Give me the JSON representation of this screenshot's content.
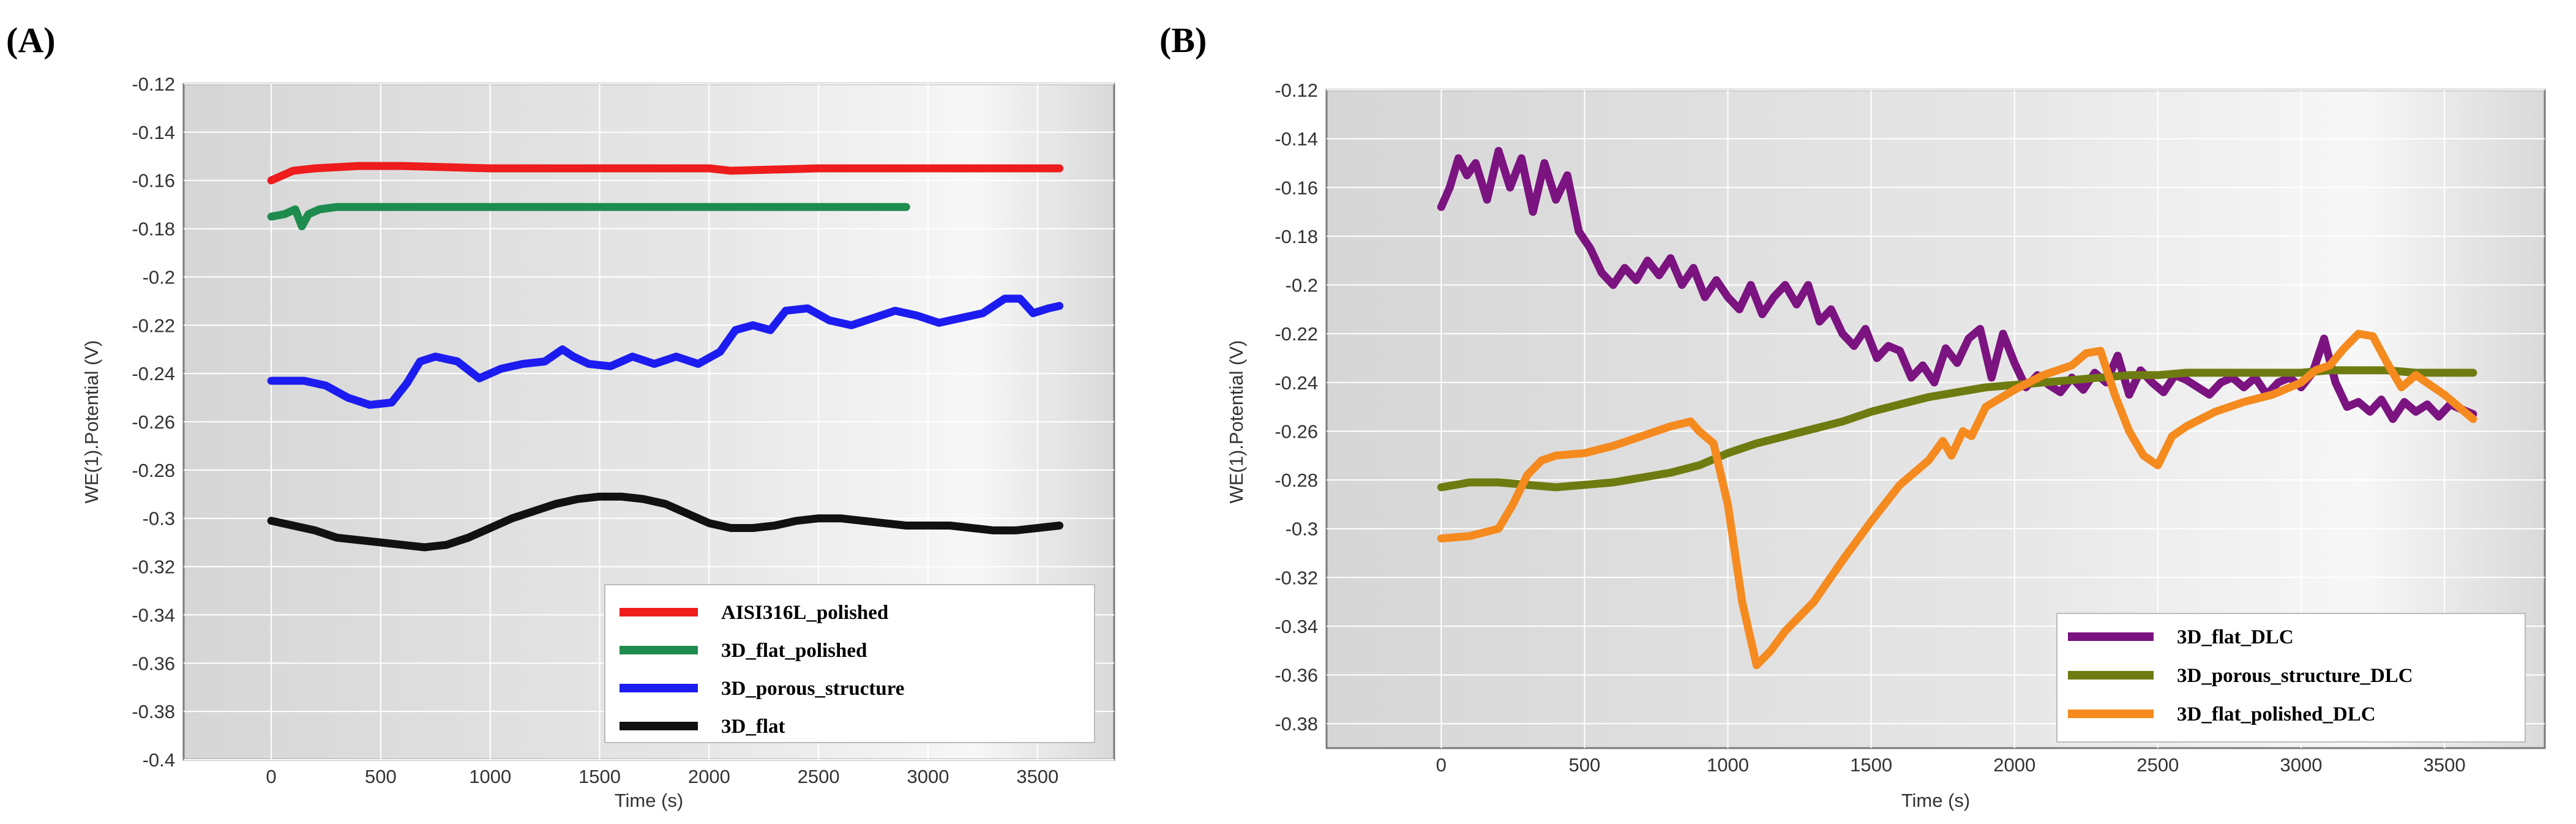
{
  "chart_data": [
    {
      "type": "line",
      "panel_label": "(A)",
      "title": "",
      "xlabel": "Time (s)",
      "ylabel": "WE(1).Potential (V)",
      "xlim": [
        -400,
        3850
      ],
      "ylim": [
        -0.4,
        -0.12
      ],
      "xticks": [
        0,
        500,
        1000,
        1500,
        2000,
        2500,
        3000,
        3500
      ],
      "yticks": [
        -0.4,
        -0.38,
        -0.36,
        -0.34,
        -0.32,
        -0.3,
        -0.28,
        -0.26,
        -0.24,
        -0.22,
        -0.2,
        -0.18,
        -0.16,
        -0.14,
        -0.12
      ],
      "xtick_labels": [
        "0",
        "500",
        "1000",
        "1500",
        "2000",
        "2500",
        "3000",
        "3500"
      ],
      "ytick_labels": [
        "-0.4",
        "-0.38",
        "-0.36",
        "-0.34",
        "-0.32",
        "-0.3",
        "-0.28",
        "-0.26",
        "-0.24",
        "-0.22",
        "-0.2",
        "-0.18",
        "-0.16",
        "-0.14",
        "-0.12"
      ],
      "grid": true,
      "legend_position": "bottom-right",
      "series": [
        {
          "name": "AISI316L_polished",
          "color": "#ee1c1c",
          "x": [
            0,
            50,
            100,
            200,
            400,
            600,
            1000,
            1500,
            2000,
            2100,
            2500,
            3000,
            3600
          ],
          "y": [
            -0.16,
            -0.158,
            -0.156,
            -0.155,
            -0.154,
            -0.154,
            -0.155,
            -0.155,
            -0.155,
            -0.156,
            -0.155,
            -0.155,
            -0.155
          ]
        },
        {
          "name": "3D_flat_polished",
          "color": "#1e8c4e",
          "x": [
            0,
            60,
            110,
            140,
            170,
            220,
            300,
            500,
            1000,
            1500,
            2000,
            2500,
            2900
          ],
          "y": [
            -0.175,
            -0.174,
            -0.172,
            -0.179,
            -0.174,
            -0.172,
            -0.171,
            -0.171,
            -0.171,
            -0.171,
            -0.171,
            -0.171,
            -0.171
          ]
        },
        {
          "name": "3D_porous_structure",
          "color": "#1c1cf0",
          "x": [
            0,
            150,
            250,
            350,
            450,
            550,
            620,
            680,
            750,
            850,
            950,
            1050,
            1150,
            1250,
            1330,
            1380,
            1450,
            1550,
            1650,
            1750,
            1850,
            1950,
            2050,
            2120,
            2200,
            2280,
            2350,
            2450,
            2550,
            2650,
            2750,
            2850,
            2950,
            3050,
            3150,
            3250,
            3350,
            3420,
            3480,
            3550,
            3600
          ],
          "y": [
            -0.243,
            -0.243,
            -0.245,
            -0.25,
            -0.253,
            -0.252,
            -0.244,
            -0.235,
            -0.233,
            -0.235,
            -0.242,
            -0.238,
            -0.236,
            -0.235,
            -0.23,
            -0.233,
            -0.236,
            -0.237,
            -0.233,
            -0.236,
            -0.233,
            -0.236,
            -0.231,
            -0.222,
            -0.22,
            -0.222,
            -0.214,
            -0.213,
            -0.218,
            -0.22,
            -0.217,
            -0.214,
            -0.216,
            -0.219,
            -0.217,
            -0.215,
            -0.209,
            -0.209,
            -0.215,
            -0.213,
            -0.212
          ]
        },
        {
          "name": "3D_flat",
          "color": "#111111",
          "x": [
            0,
            100,
            200,
            300,
            400,
            500,
            600,
            700,
            800,
            900,
            1000,
            1100,
            1200,
            1300,
            1400,
            1500,
            1600,
            1700,
            1800,
            1900,
            2000,
            2100,
            2200,
            2300,
            2400,
            2500,
            2600,
            2700,
            2800,
            2900,
            3000,
            3100,
            3200,
            3300,
            3400,
            3500,
            3600
          ],
          "y": [
            -0.301,
            -0.303,
            -0.305,
            -0.308,
            -0.309,
            -0.31,
            -0.311,
            -0.312,
            -0.311,
            -0.308,
            -0.304,
            -0.3,
            -0.297,
            -0.294,
            -0.292,
            -0.291,
            -0.291,
            -0.292,
            -0.294,
            -0.298,
            -0.302,
            -0.304,
            -0.304,
            -0.303,
            -0.301,
            -0.3,
            -0.3,
            -0.301,
            -0.302,
            -0.303,
            -0.303,
            -0.303,
            -0.304,
            -0.305,
            -0.305,
            -0.304,
            -0.303
          ]
        }
      ]
    },
    {
      "type": "line",
      "panel_label": "(B)",
      "title": "",
      "xlabel": "Time (s)",
      "ylabel": "WE(1).Potential (V)",
      "xlim": [
        -400,
        3850
      ],
      "ylim": [
        -0.39,
        -0.12
      ],
      "xticks": [
        0,
        500,
        1000,
        1500,
        2000,
        2500,
        3000,
        3500
      ],
      "yticks": [
        -0.38,
        -0.36,
        -0.34,
        -0.32,
        -0.3,
        -0.28,
        -0.26,
        -0.24,
        -0.22,
        -0.2,
        -0.18,
        -0.16,
        -0.14,
        -0.12
      ],
      "xtick_labels": [
        "0",
        "500",
        "1000",
        "1500",
        "2000",
        "2500",
        "3000",
        "3500"
      ],
      "ytick_labels": [
        "-0.38",
        "-0.36",
        "-0.34",
        "-0.32",
        "-0.3",
        "-0.28",
        "-0.26",
        "-0.24",
        "-0.22",
        "-0.2",
        "-0.18",
        "-0.16",
        "-0.14",
        "-0.12"
      ],
      "grid": true,
      "legend_position": "bottom-right",
      "series": [
        {
          "name": "3D_flat_DLC",
          "color": "#7b1380",
          "x": [
            0,
            30,
            60,
            90,
            120,
            160,
            200,
            240,
            280,
            320,
            360,
            400,
            440,
            480,
            520,
            560,
            600,
            640,
            680,
            720,
            760,
            800,
            840,
            880,
            920,
            960,
            1000,
            1040,
            1080,
            1120,
            1160,
            1200,
            1240,
            1280,
            1320,
            1360,
            1400,
            1440,
            1480,
            1520,
            1560,
            1600,
            1640,
            1680,
            1720,
            1760,
            1800,
            1840,
            1880,
            1920,
            1960,
            2000,
            2040,
            2080,
            2120,
            2160,
            2200,
            2240,
            2280,
            2320,
            2360,
            2400,
            2440,
            2480,
            2520,
            2560,
            2600,
            2640,
            2680,
            2720,
            2760,
            2800,
            2840,
            2880,
            2920,
            2960,
            3000,
            3040,
            3080,
            3120,
            3160,
            3200,
            3240,
            3280,
            3320,
            3360,
            3400,
            3440,
            3480,
            3520,
            3560,
            3600
          ],
          "y": [
            -0.168,
            -0.16,
            -0.148,
            -0.155,
            -0.15,
            -0.165,
            -0.145,
            -0.16,
            -0.148,
            -0.17,
            -0.15,
            -0.165,
            -0.155,
            -0.178,
            -0.185,
            -0.195,
            -0.2,
            -0.193,
            -0.198,
            -0.19,
            -0.196,
            -0.189,
            -0.2,
            -0.193,
            -0.205,
            -0.198,
            -0.205,
            -0.21,
            -0.2,
            -0.212,
            -0.205,
            -0.2,
            -0.208,
            -0.2,
            -0.215,
            -0.21,
            -0.22,
            -0.225,
            -0.218,
            -0.23,
            -0.225,
            -0.227,
            -0.238,
            -0.233,
            -0.24,
            -0.226,
            -0.232,
            -0.222,
            -0.218,
            -0.238,
            -0.22,
            -0.232,
            -0.242,
            -0.237,
            -0.241,
            -0.244,
            -0.238,
            -0.243,
            -0.236,
            -0.24,
            -0.229,
            -0.245,
            -0.235,
            -0.24,
            -0.244,
            -0.237,
            -0.239,
            -0.242,
            -0.245,
            -0.24,
            -0.238,
            -0.242,
            -0.238,
            -0.245,
            -0.24,
            -0.238,
            -0.242,
            -0.236,
            -0.222,
            -0.24,
            -0.25,
            -0.248,
            -0.252,
            -0.247,
            -0.255,
            -0.248,
            -0.252,
            -0.249,
            -0.254,
            -0.249,
            -0.251,
            -0.253
          ]
        },
        {
          "name": "3D_porous_structure_DLC",
          "color": "#6e7b10",
          "x": [
            0,
            100,
            200,
            300,
            400,
            500,
            600,
            700,
            800,
            900,
            1000,
            1100,
            1200,
            1300,
            1400,
            1500,
            1600,
            1700,
            1800,
            1900,
            2000,
            2100,
            2200,
            2300,
            2400,
            2500,
            2600,
            2700,
            2800,
            2900,
            3000,
            3100,
            3200,
            3300,
            3400,
            3500,
            3600
          ],
          "y": [
            -0.283,
            -0.281,
            -0.281,
            -0.282,
            -0.283,
            -0.282,
            -0.281,
            -0.279,
            -0.277,
            -0.274,
            -0.269,
            -0.265,
            -0.262,
            -0.259,
            -0.256,
            -0.252,
            -0.249,
            -0.246,
            -0.244,
            -0.242,
            -0.241,
            -0.24,
            -0.239,
            -0.238,
            -0.237,
            -0.237,
            -0.236,
            -0.236,
            -0.236,
            -0.236,
            -0.236,
            -0.235,
            -0.235,
            -0.235,
            -0.236,
            -0.236,
            -0.236
          ]
        },
        {
          "name": "3D_flat_polished_DLC",
          "color": "#f58a1f",
          "x": [
            0,
            100,
            200,
            250,
            300,
            350,
            400,
            500,
            600,
            700,
            800,
            870,
            900,
            950,
            1000,
            1050,
            1100,
            1150,
            1200,
            1300,
            1400,
            1500,
            1600,
            1700,
            1750,
            1780,
            1820,
            1850,
            1900,
            2000,
            2100,
            2200,
            2250,
            2300,
            2350,
            2400,
            2450,
            2500,
            2550,
            2600,
            2700,
            2800,
            2900,
            3000,
            3050,
            3100,
            3150,
            3200,
            3250,
            3300,
            3350,
            3400,
            3450,
            3500,
            3550,
            3600
          ],
          "y": [
            -0.304,
            -0.303,
            -0.3,
            -0.29,
            -0.278,
            -0.272,
            -0.27,
            -0.269,
            -0.266,
            -0.262,
            -0.258,
            -0.256,
            -0.26,
            -0.265,
            -0.29,
            -0.33,
            -0.356,
            -0.35,
            -0.342,
            -0.33,
            -0.313,
            -0.297,
            -0.282,
            -0.272,
            -0.264,
            -0.27,
            -0.26,
            -0.262,
            -0.25,
            -0.243,
            -0.237,
            -0.233,
            -0.228,
            -0.227,
            -0.245,
            -0.26,
            -0.27,
            -0.274,
            -0.262,
            -0.258,
            -0.252,
            -0.248,
            -0.245,
            -0.24,
            -0.235,
            -0.233,
            -0.226,
            -0.22,
            -0.221,
            -0.232,
            -0.242,
            -0.237,
            -0.241,
            -0.245,
            -0.25,
            -0.255
          ]
        }
      ]
    }
  ]
}
